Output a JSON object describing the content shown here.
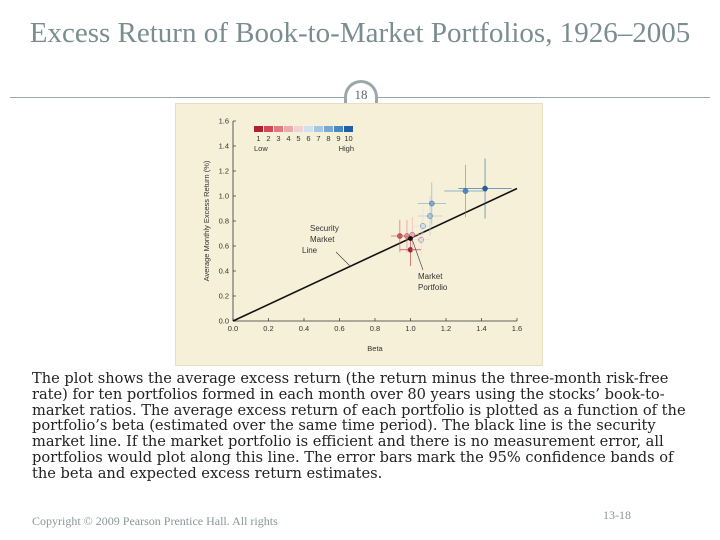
{
  "slide": {
    "title": "Excess Return of Book-to-Market Portfolios, 1926–2005",
    "slide_number": "18",
    "caption": "The plot shows the average excess return (the return minus the three-month risk-free rate) for ten portfolios formed in each month over 80 years using the stocks’ book-to-market ratios. The average excess return of each portfolio is plotted as a function of the portfolio’s beta (estimated over the same time period). The black line is the security market line. If the market portfolio is efficient and there is no measurement error, all portfolios would plot along this line. The error bars mark the 95% confidence bands of the beta and expected excess return estimates.",
    "copyright": "Copyright © 2009 Pearson Prentice Hall. All rights",
    "footer_number": "13-18"
  },
  "colors": {
    "title": "#7a8d90",
    "rule": "#9aa8aa",
    "figure_bg": "#f6f0d8",
    "sml_line": "#111111",
    "portfolio_colors": [
      "#b22030",
      "#d04a55",
      "#e07a80",
      "#ecaab0",
      "#f0d2d4",
      "#d2e0ee",
      "#a6c6e4",
      "#78a8d6",
      "#4a88c4",
      "#1f5fa8"
    ]
  },
  "chart_data": {
    "type": "scatter",
    "title": "",
    "xlabel": "Beta",
    "ylabel": "Average Monthly Excess Return (%)",
    "xlim": [
      0.0,
      1.6
    ],
    "ylim": [
      0.0,
      1.6
    ],
    "x_ticks": [
      "0.0",
      "0.2",
      "0.4",
      "0.6",
      "0.8",
      "1.0",
      "1.2",
      "1.4",
      "1.6"
    ],
    "y_ticks": [
      "0.0",
      "0.2",
      "0.4",
      "0.6",
      "0.8",
      "1.0",
      "1.2",
      "1.4",
      "1.6"
    ],
    "grid": false,
    "legend": {
      "placement": "top-left",
      "labels": [
        "1",
        "2",
        "3",
        "4",
        "5",
        "6",
        "7",
        "8",
        "9",
        "10"
      ],
      "low_label": "Low",
      "high_label": "High"
    },
    "security_market_line": {
      "x": [
        0.0,
        1.6
      ],
      "y": [
        0.0,
        1.06
      ]
    },
    "series": [
      {
        "name": "1",
        "x": 1.0,
        "y": 0.57,
        "x_err": 0.06,
        "y_err": 0.13
      },
      {
        "name": "2",
        "x": 0.94,
        "y": 0.68,
        "x_err": 0.05,
        "y_err": 0.13
      },
      {
        "name": "3",
        "x": 0.98,
        "y": 0.68,
        "x_err": 0.05,
        "y_err": 0.13
      },
      {
        "name": "4",
        "x": 1.01,
        "y": 0.69,
        "x_err": 0.05,
        "y_err": 0.14
      },
      {
        "name": "5",
        "x": 1.06,
        "y": 0.65,
        "x_err": 0.05,
        "y_err": 0.14
      },
      {
        "name": "6",
        "x": 1.07,
        "y": 0.76,
        "x_err": 0.06,
        "y_err": 0.15
      },
      {
        "name": "7",
        "x": 1.11,
        "y": 0.84,
        "x_err": 0.07,
        "y_err": 0.16
      },
      {
        "name": "8",
        "x": 1.12,
        "y": 0.94,
        "x_err": 0.08,
        "y_err": 0.17
      },
      {
        "name": "9",
        "x": 1.31,
        "y": 1.04,
        "x_err": 0.12,
        "y_err": 0.21
      },
      {
        "name": "10",
        "x": 1.42,
        "y": 1.06,
        "x_err": 0.15,
        "y_err": 0.24
      }
    ],
    "market_portfolio": {
      "x": 1.0,
      "y": 0.66
    },
    "annotations": {
      "sml_label_lines": [
        "Security",
        "Market",
        "Line"
      ],
      "market_label_lines": [
        "Market",
        "Portfolio"
      ]
    }
  }
}
